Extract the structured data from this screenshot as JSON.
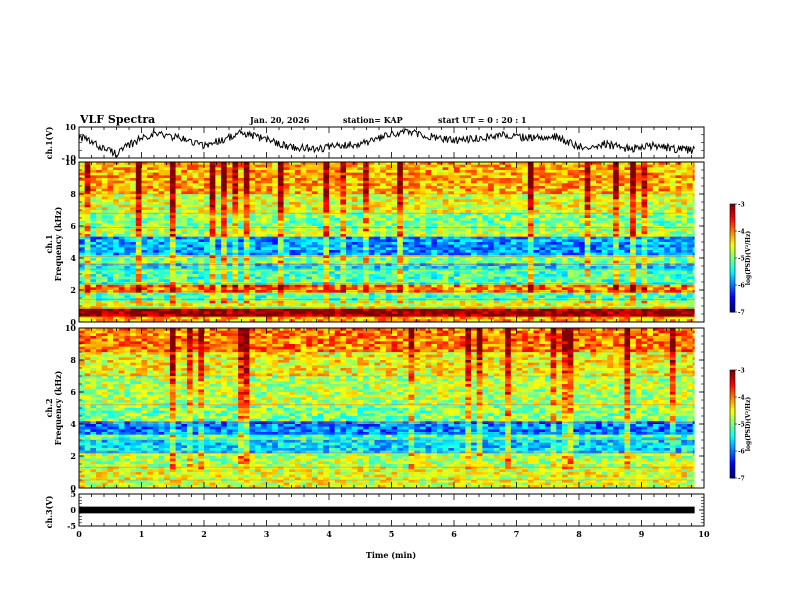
{
  "header": {
    "title": "VLF Spectra",
    "date": "Jan. 20, 2026",
    "station": "station= KAP",
    "start_ut": "start  UT =   0 : 20 : 1"
  },
  "chart_data": [
    {
      "type": "line",
      "name": "ch1-waveform",
      "ylabel": "ch.1(V)",
      "ylim": [
        -10,
        10
      ],
      "yticks": [
        "10",
        "-10"
      ],
      "xlim": [
        0,
        10
      ],
      "x_end": 9.85,
      "series": [
        {
          "name": "ch.1",
          "approx_profile": [
            [
              0.0,
              4
            ],
            [
              0.3,
              -2
            ],
            [
              0.6,
              -7
            ],
            [
              1.0,
              3
            ],
            [
              1.2,
              6
            ],
            [
              1.6,
              3
            ],
            [
              2.0,
              -2
            ],
            [
              2.3,
              2
            ],
            [
              2.6,
              6
            ],
            [
              3.0,
              2
            ],
            [
              3.4,
              -3
            ],
            [
              3.8,
              -4
            ],
            [
              4.2,
              -2
            ],
            [
              4.6,
              0
            ],
            [
              5.0,
              5
            ],
            [
              5.2,
              7
            ],
            [
              5.6,
              4
            ],
            [
              6.0,
              1
            ],
            [
              6.4,
              3
            ],
            [
              6.8,
              5
            ],
            [
              7.2,
              3
            ],
            [
              7.6,
              4
            ],
            [
              8.0,
              -3
            ],
            [
              8.4,
              -1
            ],
            [
              8.8,
              -4
            ],
            [
              9.2,
              -2
            ],
            [
              9.5,
              -4
            ],
            [
              9.85,
              -5
            ]
          ]
        }
      ]
    },
    {
      "type": "heatmap",
      "name": "ch1-spectrogram",
      "ylabel": "Frequency (kHz)",
      "channel_label": "ch.1",
      "ylim": [
        0,
        10
      ],
      "yticks": [
        "0",
        "2",
        "4",
        "6",
        "8",
        "10"
      ],
      "xlim": [
        0,
        10
      ],
      "colorbar": {
        "label": "log(PSD)(V²/Hz)",
        "range": [
          -7,
          -3
        ],
        "ticks": [
          "-3",
          "-4",
          "-5",
          "-6",
          "-7"
        ]
      },
      "bands_log_psd": [
        [
          0.0,
          0.3,
          -4.2
        ],
        [
          0.3,
          0.9,
          -3.0
        ],
        [
          0.9,
          1.4,
          -4.6
        ],
        [
          1.4,
          1.9,
          -5.2
        ],
        [
          1.9,
          2.4,
          -4.0
        ],
        [
          2.4,
          3.3,
          -5.2
        ],
        [
          3.3,
          3.6,
          -5.6
        ],
        [
          3.6,
          4.1,
          -5.0
        ],
        [
          4.1,
          5.3,
          -5.9
        ],
        [
          5.3,
          5.9,
          -4.8
        ],
        [
          5.9,
          6.8,
          -5.0
        ],
        [
          6.8,
          8.0,
          -4.6
        ],
        [
          8.0,
          10.0,
          -4.2
        ]
      ]
    },
    {
      "type": "heatmap",
      "name": "ch2-spectrogram",
      "ylabel": "Frequency (kHz)",
      "channel_label": "ch.2",
      "ylim": [
        0,
        10
      ],
      "yticks": [
        "0",
        "2",
        "4",
        "6",
        "8",
        "10"
      ],
      "xlim": [
        0,
        10
      ],
      "colorbar": {
        "label": "log(PSD)(V²/Hz)",
        "range": [
          -7,
          -3
        ],
        "ticks": [
          "-3",
          "-4",
          "-5",
          "-6",
          "-7"
        ]
      },
      "bands_log_psd": [
        [
          0.0,
          0.5,
          -4.6
        ],
        [
          0.5,
          1.3,
          -4.6
        ],
        [
          1.3,
          2.2,
          -4.8
        ],
        [
          2.2,
          3.0,
          -5.6
        ],
        [
          3.0,
          3.4,
          -5.2
        ],
        [
          3.4,
          4.1,
          -6.0
        ],
        [
          4.1,
          5.2,
          -5.0
        ],
        [
          5.2,
          7.0,
          -4.8
        ],
        [
          7.0,
          8.5,
          -4.5
        ],
        [
          8.5,
          10.0,
          -4.0
        ]
      ]
    },
    {
      "type": "line",
      "name": "ch3-waveform",
      "ylabel": "ch.3(V)",
      "ylim": [
        -5,
        5
      ],
      "yticks": [
        "5",
        "0",
        "-5"
      ],
      "xlim": [
        0,
        10
      ],
      "x_end": 9.85,
      "xlabel": "Time  (min)",
      "xticks": [
        "0",
        "1",
        "2",
        "3",
        "4",
        "5",
        "6",
        "7",
        "8",
        "9",
        "10"
      ],
      "series": [
        {
          "name": "ch.3",
          "mean": 0,
          "band_half_width": 0.35
        }
      ]
    }
  ]
}
